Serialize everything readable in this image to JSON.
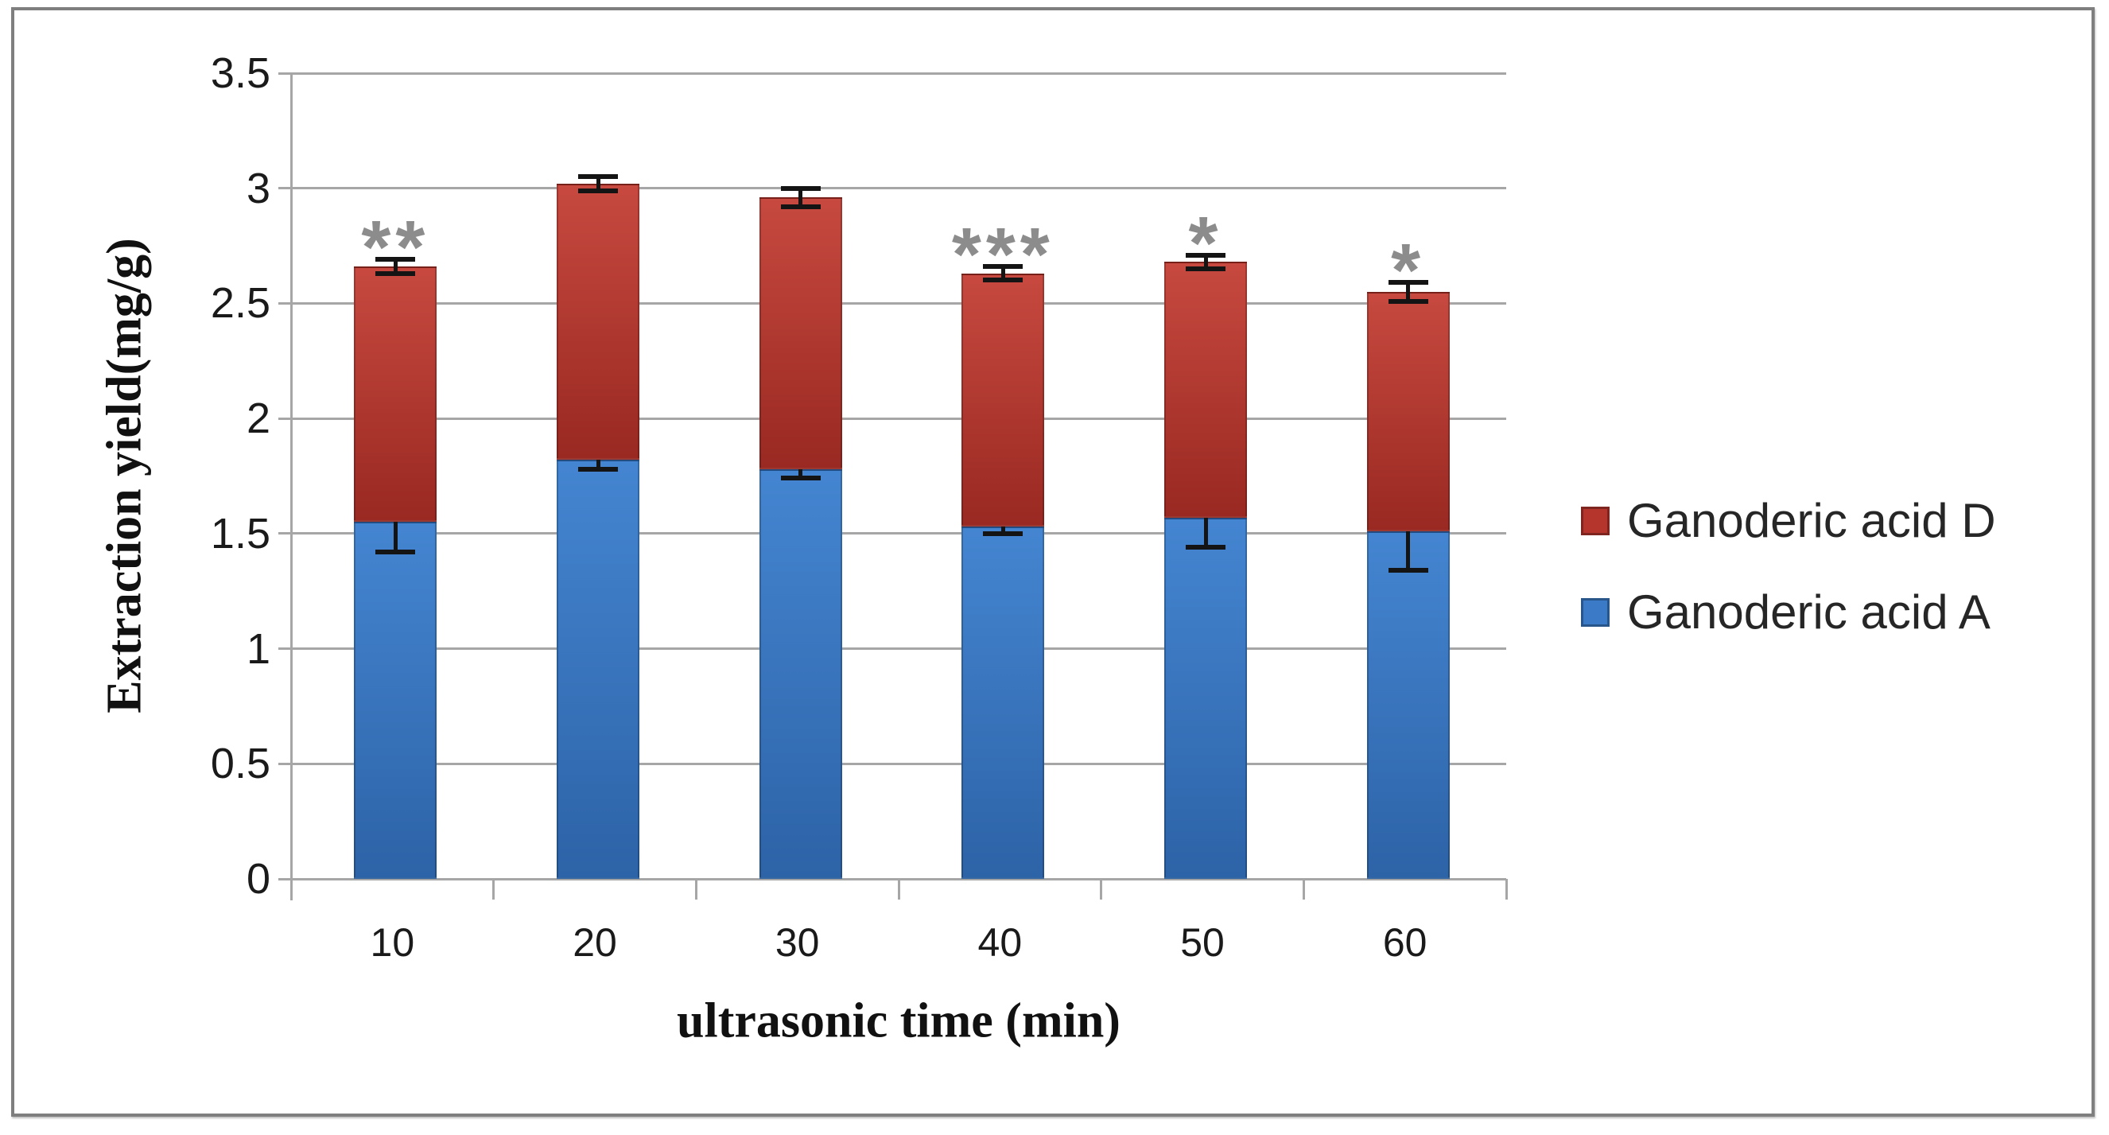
{
  "figure": {
    "background": "#ffffff",
    "border_color": "#7f7f7f"
  },
  "chart_data": {
    "type": "bar",
    "stacked": true,
    "title": "",
    "xlabel": "ultrasonic time (min)",
    "ylabel": "Extraction yield(mg/g)",
    "categories": [
      "10",
      "20",
      "30",
      "40",
      "50",
      "60"
    ],
    "series": [
      {
        "name": "Ganoderic acid A",
        "color_top": "#4485d1",
        "color_bottom": "#2d63a7",
        "values": [
          1.55,
          1.82,
          1.78,
          1.53,
          1.57,
          1.51
        ],
        "errors": [
          0.13,
          0.04,
          0.04,
          0.03,
          0.13,
          0.17
        ]
      },
      {
        "name": "Ganoderic acid D",
        "color_top": "#c7493f",
        "color_bottom": "#992922",
        "values": [
          1.11,
          1.2,
          1.18,
          1.1,
          1.11,
          1.04
        ],
        "errors": [
          0.03,
          0.03,
          0.04,
          0.03,
          0.03,
          0.04
        ]
      }
    ],
    "stack_totals": [
      2.66,
      3.02,
      2.96,
      2.63,
      2.68,
      2.55
    ],
    "significance": [
      "**",
      "",
      "",
      "***",
      "*",
      "*"
    ],
    "ylim": [
      0,
      3.5
    ],
    "ytick_values": [
      3.5,
      3,
      2.5,
      2,
      1.5,
      1,
      0.5,
      0
    ],
    "ytick_labels": [
      "3.5",
      "3",
      "2.5",
      "2",
      "1.5",
      "1",
      "0.5",
      "0"
    ],
    "grid": true,
    "legend_position": "right"
  },
  "legend": {
    "items": [
      {
        "label": "Ganoderic acid D",
        "color": "#b5352d"
      },
      {
        "label": "Ganoderic acid A",
        "color": "#3a7ac6"
      }
    ]
  },
  "colors": {
    "grid": "#a6a6a6",
    "axis": "#a6a6a6",
    "text": "#1a1a1a",
    "error_bar": "#141414",
    "significance": "#8c8c8c"
  }
}
